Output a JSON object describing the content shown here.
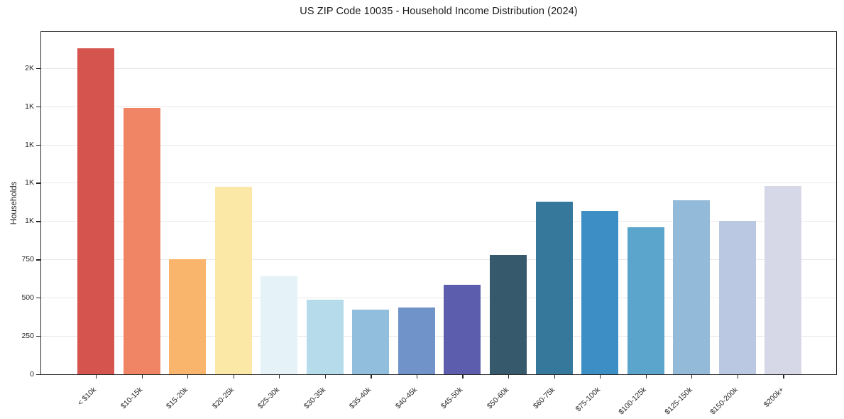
{
  "chart_data": {
    "type": "bar",
    "title": "US ZIP Code 10035 - Household Income Distribution (2024)",
    "xlabel": "",
    "ylabel": "Households",
    "categories": [
      "< $10k",
      "$10-15k",
      "$15-20k",
      "$20-25k",
      "$25-30k",
      "$30-35k",
      "$35-40k",
      "$40-45k",
      "$45-50k",
      "$50-60k",
      "$60-75k",
      "$75-100k",
      "$100-125k",
      "$125-150k",
      "$150-200k",
      "$200k+"
    ],
    "values": [
      2130,
      1740,
      750,
      1225,
      640,
      485,
      420,
      435,
      585,
      780,
      1125,
      1065,
      960,
      1135,
      1000,
      1230
    ],
    "bar_colors": [
      "#d5544e",
      "#f08566",
      "#f9b56c",
      "#fce8a6",
      "#e5f2f7",
      "#b6dbea",
      "#91bedd",
      "#7094c9",
      "#5c5dac",
      "#36596b",
      "#36789c",
      "#3d8ec4",
      "#5ba4cc",
      "#93bad9",
      "#bac9e1",
      "#d7d8e7"
    ],
    "y_ticks": [
      {
        "value": 0,
        "label": "0"
      },
      {
        "value": 250,
        "label": "250"
      },
      {
        "value": 500,
        "label": "500"
      },
      {
        "value": 750,
        "label": "750"
      },
      {
        "value": 1000,
        "label": "1K"
      },
      {
        "value": 1250,
        "label": "1K"
      },
      {
        "value": 1500,
        "label": "1K"
      },
      {
        "value": 1750,
        "label": "1K"
      },
      {
        "value": 2000,
        "label": "2K"
      }
    ],
    "ylim": [
      0,
      2235
    ],
    "grid": "horizontal",
    "legend": "none",
    "colors": {
      "background": "#ffffff",
      "spine": "#2b2b2b",
      "gridline": "#e9e9e9",
      "tick": "#262626",
      "text": "#262626",
      "title_text": "#1a1a1a"
    }
  }
}
